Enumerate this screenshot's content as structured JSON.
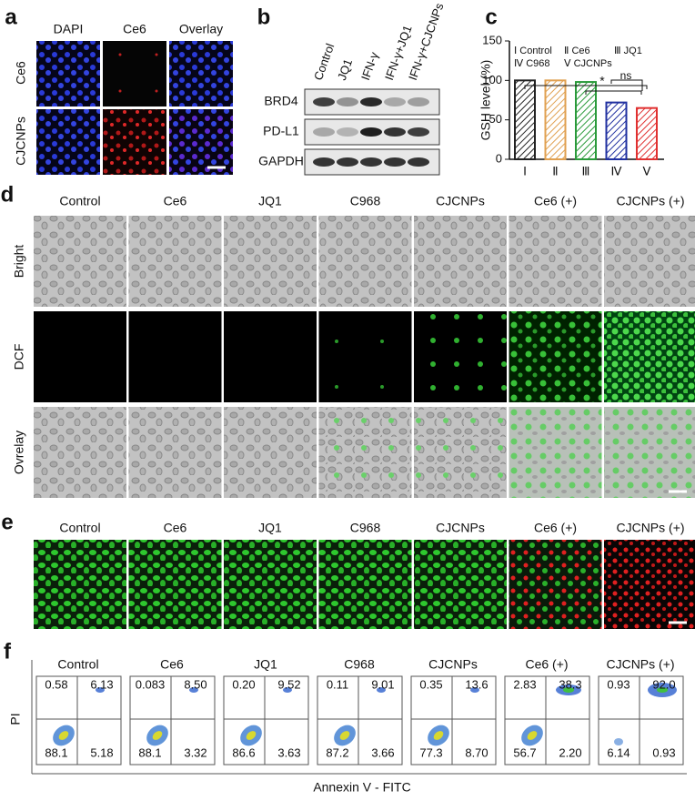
{
  "panel_labels": [
    "a",
    "b",
    "c",
    "d",
    "e",
    "f"
  ],
  "panel_a": {
    "columns": [
      "DAPI",
      "Ce6",
      "Overlay"
    ],
    "rows": [
      "Ce6",
      "CJCNPs"
    ]
  },
  "panel_b": {
    "lanes": [
      "Control",
      "JQ1",
      "IFN-γ",
      "IFN-γ+JQ1",
      "IFN-γ+CJCNPs"
    ],
    "bands": [
      "BRD4",
      "PD-L1",
      "GAPDH"
    ]
  },
  "chart_data": {
    "type": "bar",
    "ylabel": "GSH level (%)",
    "categories": [
      "Ⅰ",
      "Ⅱ",
      "Ⅲ",
      "Ⅳ",
      "Ⅴ"
    ],
    "values": [
      100,
      100,
      98,
      72,
      65
    ],
    "colors": [
      "#222222",
      "#e0a050",
      "#2a9a3a",
      "#2030a0",
      "#e03030"
    ],
    "ylim": [
      0,
      150
    ],
    "yticks": [
      0,
      50,
      100,
      150
    ],
    "legend": [
      "Ⅰ Control",
      "Ⅱ Ce6",
      "Ⅲ JQ1",
      "Ⅳ C968",
      "Ⅴ CJCNPs"
    ],
    "annotations": [
      "*",
      "ns"
    ]
  },
  "panel_d": {
    "columns": [
      "Control",
      "Ce6",
      "JQ1",
      "C968",
      "CJCNPs",
      "Ce6 (+)",
      "CJCNPs (+)"
    ],
    "rows": [
      "Bright",
      "DCF",
      "Ovrelay"
    ]
  },
  "panel_e": {
    "columns": [
      "Control",
      "Ce6",
      "JQ1",
      "C968",
      "CJCNPs",
      "Ce6 (+)",
      "CJCNPs (+)"
    ]
  },
  "panel_f": {
    "columns": [
      "Control",
      "Ce6",
      "JQ1",
      "C968",
      "CJCNPs",
      "Ce6 (+)",
      "CJCNPs (+)"
    ],
    "ylabel": "PI",
    "xlabel": "Annexin V - FITC",
    "quadrants": [
      [
        "0.58",
        "6.13",
        "88.1",
        "5.18"
      ],
      [
        "0.083",
        "8.50",
        "88.1",
        "3.32"
      ],
      [
        "0.20",
        "9.52",
        "86.6",
        "3.63"
      ],
      [
        "0.11",
        "9.01",
        "87.2",
        "3.66"
      ],
      [
        "0.35",
        "13.6",
        "77.3",
        "8.70"
      ],
      [
        "2.83",
        "38.3",
        "56.7",
        "2.20"
      ],
      [
        "0.93",
        "92.0",
        "6.14",
        "0.93"
      ]
    ]
  }
}
